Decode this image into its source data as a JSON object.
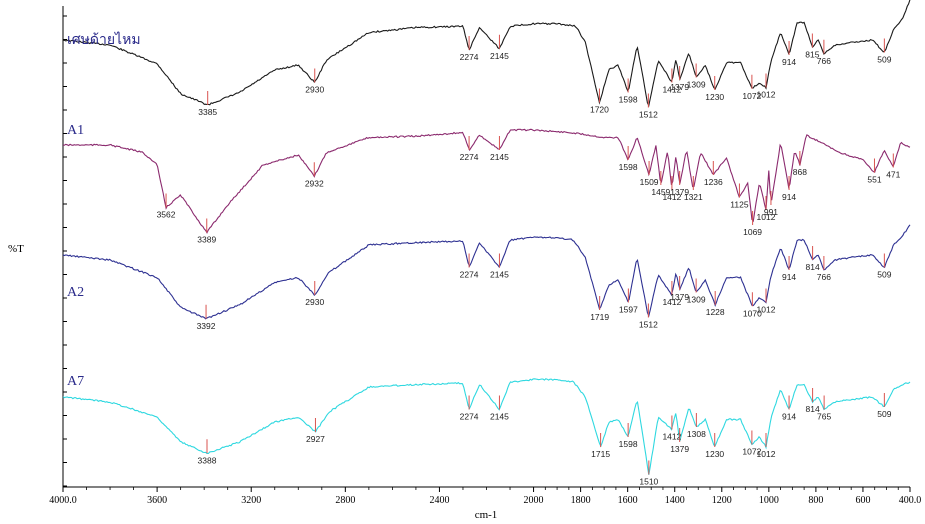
{
  "chart_data": {
    "type": "line",
    "xlabel": "cm-1",
    "ylabel": "%T",
    "xlim": [
      4000.0,
      400.0
    ],
    "x_ticks": [
      "4000.0",
      "3600",
      "3200",
      "2800",
      "2400",
      "2000",
      "1800",
      "1600",
      "1400",
      "1200",
      "1000",
      "800",
      "600",
      "400.0"
    ],
    "x_tick_values": [
      4000,
      3600,
      3200,
      2800,
      2400,
      2000,
      1800,
      1600,
      1400,
      1200,
      1000,
      800,
      600,
      400
    ],
    "grid": false,
    "legend": "none",
    "peak_marker_color": "#d9534f",
    "series": [
      {
        "name": "เศษด้ายไหม",
        "color": "#1a1a1a",
        "label_color": "#2a2a8a",
        "x": [
          4000,
          3800,
          3600,
          3500,
          3385,
          3250,
          3100,
          3000,
          2930,
          2880,
          2700,
          2500,
          2300,
          2274,
          2230,
          2145,
          2100,
          2000,
          1900,
          1820,
          1780,
          1720,
          1680,
          1640,
          1598,
          1560,
          1512,
          1470,
          1412,
          1395,
          1379,
          1340,
          1309,
          1270,
          1230,
          1180,
          1120,
          1072,
          1040,
          1012,
          990,
          950,
          914,
          880,
          850,
          815,
          790,
          766,
          720,
          650,
          560,
          509,
          470,
          430,
          400
        ],
        "y": [
          0.0,
          0.2,
          0.95,
          2.15,
          2.6,
          2.1,
          1.2,
          1.0,
          1.7,
          0.8,
          -0.3,
          -0.5,
          -0.55,
          0.4,
          -0.5,
          0.35,
          -0.55,
          -0.65,
          -0.65,
          -0.55,
          0.1,
          2.5,
          1.2,
          1.0,
          2.1,
          0.2,
          2.7,
          0.8,
          1.7,
          0.75,
          1.6,
          0.5,
          1.5,
          1.0,
          2.0,
          0.9,
          0.9,
          1.95,
          1.7,
          1.9,
          0.8,
          -0.3,
          0.6,
          -0.7,
          -0.7,
          0.3,
          0.0,
          0.55,
          0.2,
          0.1,
          0.0,
          0.5,
          -0.4,
          -0.9,
          -1.6
        ],
        "peaks": [
          3385,
          2930,
          2274,
          2145,
          1720,
          1598,
          1512,
          1412,
          1379,
          1309,
          1230,
          1072,
          1012,
          914,
          815,
          766,
          509
        ],
        "peak_labels": [
          "3385",
          "2930",
          "2274",
          "2145",
          "1720",
          "1598",
          "1512",
          "1412",
          "1379",
          "1309",
          "1230",
          "1072",
          "1012",
          "914",
          "815",
          "766",
          "509"
        ]
      },
      {
        "name": "A1",
        "color": "#8b2a6e",
        "label_color": "#2a2a8a",
        "x": [
          4000,
          3800,
          3660,
          3600,
          3562,
          3500,
          3389,
          3300,
          3150,
          3000,
          2932,
          2880,
          2700,
          2500,
          2300,
          2274,
          2230,
          2145,
          2100,
          2000,
          1850,
          1800,
          1700,
          1640,
          1598,
          1560,
          1509,
          1480,
          1459,
          1430,
          1412,
          1395,
          1379,
          1350,
          1321,
          1290,
          1236,
          1180,
          1125,
          1090,
          1069,
          1040,
          1012,
          1000,
          991,
          950,
          914,
          890,
          868,
          840,
          700,
          600,
          551,
          510,
          471,
          440,
          400
        ],
        "y": [
          0.0,
          0.0,
          0.3,
          0.8,
          2.5,
          2.0,
          3.5,
          2.4,
          0.8,
          0.4,
          1.25,
          0.3,
          -0.3,
          -0.35,
          -0.5,
          0.2,
          -0.4,
          0.2,
          -0.6,
          -0.6,
          -0.5,
          -0.45,
          -0.3,
          -0.3,
          0.6,
          -0.3,
          1.2,
          0.0,
          1.6,
          0.2,
          1.8,
          0.4,
          1.6,
          0.2,
          1.8,
          0.3,
          1.2,
          0.5,
          2.1,
          1.5,
          3.2,
          1.5,
          2.6,
          1.0,
          2.4,
          -0.1,
          1.8,
          0.2,
          0.8,
          -0.4,
          0.3,
          0.6,
          1.1,
          0.2,
          0.9,
          -0.1,
          0.1
        ],
        "peaks": [
          3562,
          3389,
          2932,
          2274,
          2145,
          1598,
          1509,
          1459,
          1412,
          1379,
          1321,
          1236,
          1125,
          1069,
          1012,
          991,
          914,
          868,
          551,
          471
        ],
        "peak_labels": [
          "3562",
          "3389",
          "2932",
          "2274",
          "2145",
          "1598",
          "1509",
          "1459",
          "1412",
          "1379",
          "1321",
          "1236",
          "1125",
          "1069",
          "1012",
          "991",
          "914",
          "868",
          "551",
          "471"
        ]
      },
      {
        "name": "A2",
        "color": "#2e3192",
        "label_color": "#2a2a8a",
        "x": [
          4000,
          3800,
          3600,
          3500,
          3392,
          3250,
          3100,
          3000,
          2930,
          2870,
          2700,
          2500,
          2300,
          2274,
          2230,
          2145,
          2100,
          2000,
          1900,
          1830,
          1780,
          1719,
          1680,
          1640,
          1597,
          1560,
          1512,
          1470,
          1412,
          1395,
          1379,
          1340,
          1309,
          1270,
          1228,
          1180,
          1120,
          1070,
          1040,
          1012,
          990,
          950,
          914,
          880,
          850,
          814,
          790,
          766,
          720,
          650,
          560,
          509,
          470,
          430,
          400
        ],
        "y": [
          0.0,
          0.2,
          0.9,
          2.1,
          2.55,
          2.0,
          1.1,
          0.9,
          1.6,
          0.7,
          -0.4,
          -0.5,
          -0.55,
          0.5,
          -0.5,
          0.5,
          -0.6,
          -0.7,
          -0.7,
          -0.6,
          0.1,
          2.2,
          1.2,
          1.0,
          1.9,
          0.1,
          2.5,
          0.8,
          1.6,
          0.7,
          1.4,
          0.5,
          1.5,
          1.0,
          2.0,
          0.9,
          0.9,
          2.05,
          1.7,
          1.9,
          0.8,
          -0.3,
          0.6,
          -0.6,
          -0.6,
          0.2,
          0.0,
          0.6,
          0.2,
          0.1,
          0.0,
          0.5,
          -0.4,
          -0.8,
          -1.2
        ],
        "peaks": [
          3392,
          2930,
          2274,
          2145,
          1719,
          1597,
          1512,
          1412,
          1379,
          1309,
          1228,
          1070,
          1012,
          914,
          814,
          766,
          509
        ],
        "peak_labels": [
          "3392",
          "2930",
          "2274",
          "2145",
          "1719",
          "1597",
          "1512",
          "1412",
          "1379",
          "1309",
          "1228",
          "1070",
          "1012",
          "914",
          "814",
          "766",
          "509"
        ]
      },
      {
        "name": "A7",
        "color": "#2fd8e0",
        "label_color": "#2a2a8a",
        "x": [
          4000,
          3800,
          3600,
          3500,
          3388,
          3250,
          3100,
          3000,
          2927,
          2870,
          2700,
          2500,
          2300,
          2274,
          2230,
          2145,
          2100,
          2000,
          1900,
          1830,
          1780,
          1715,
          1680,
          1640,
          1598,
          1560,
          1510,
          1470,
          1412,
          1395,
          1379,
          1340,
          1308,
          1270,
          1230,
          1180,
          1120,
          1072,
          1040,
          1012,
          990,
          950,
          914,
          880,
          850,
          814,
          790,
          765,
          720,
          650,
          560,
          509,
          470,
          430,
          400
        ],
        "y": [
          0.0,
          0.2,
          0.8,
          1.8,
          2.25,
          1.8,
          1.0,
          0.8,
          1.4,
          0.6,
          -0.4,
          -0.5,
          -0.55,
          0.5,
          -0.5,
          0.5,
          -0.6,
          -0.7,
          -0.7,
          -0.6,
          0.0,
          2.0,
          1.0,
          0.9,
          1.6,
          0.1,
          3.1,
          0.8,
          1.3,
          0.6,
          1.8,
          0.4,
          1.2,
          0.9,
          2.0,
          0.9,
          0.9,
          1.9,
          1.6,
          2.0,
          0.8,
          -0.3,
          0.5,
          -0.5,
          -0.5,
          0.2,
          0.0,
          0.5,
          0.2,
          0.1,
          0.0,
          0.4,
          -0.3,
          -0.5,
          -0.6
        ],
        "peaks": [
          3388,
          2927,
          2274,
          2145,
          1715,
          1598,
          1510,
          1412,
          1379,
          1308,
          1230,
          1072,
          1012,
          914,
          814,
          765,
          509
        ],
        "peak_labels": [
          "3388",
          "2927",
          "2274",
          "2145",
          "1715",
          "1598",
          "1510",
          "1412",
          "1379",
          "1308",
          "1230",
          "1072",
          "1012",
          "914",
          "814",
          "765",
          "509"
        ]
      }
    ]
  }
}
